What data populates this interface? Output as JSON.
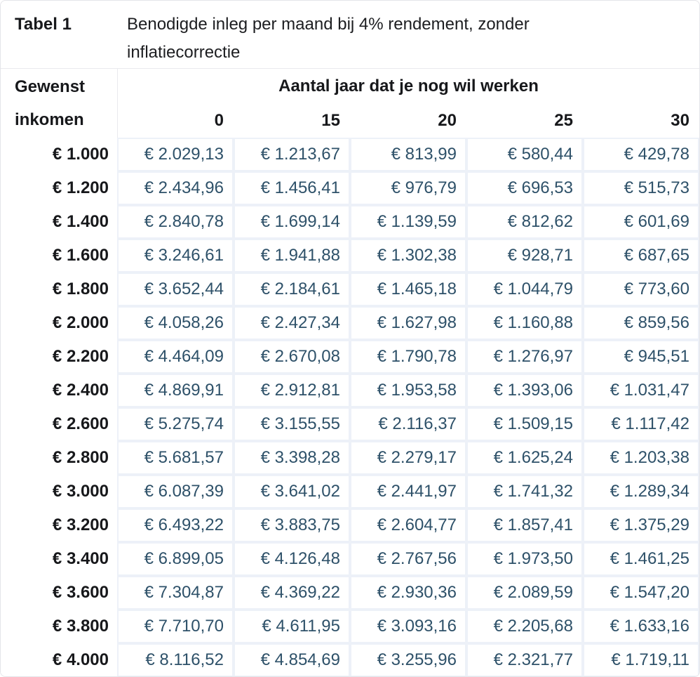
{
  "colors": {
    "value_text": "#2e5169",
    "grid_border": "#edf1f8",
    "divider": "#e9eaee",
    "header_text": "#17181b",
    "background": "#ffffff"
  },
  "table": {
    "label": "Tabel 1",
    "caption": "Benodigde inleg per maand bij 4% rendement, zonder inflatiecorrectie",
    "row_header_line1": "Gewenst",
    "row_header_line2": "inkomen",
    "col_group_header": "Aantal jaar dat je nog wil werken",
    "col_headers": [
      "0",
      "15",
      "20",
      "25",
      "30"
    ],
    "rows": [
      {
        "income": "€ 1.000",
        "values": [
          "€ 2.029,13",
          "€ 1.213,67",
          "€ 813,99",
          "€ 580,44",
          "€ 429,78"
        ]
      },
      {
        "income": "€ 1.200",
        "values": [
          "€ 2.434,96",
          "€ 1.456,41",
          "€ 976,79",
          "€ 696,53",
          "€ 515,73"
        ]
      },
      {
        "income": "€ 1.400",
        "values": [
          "€ 2.840,78",
          "€ 1.699,14",
          "€ 1.139,59",
          "€ 812,62",
          "€ 601,69"
        ]
      },
      {
        "income": "€ 1.600",
        "values": [
          "€ 3.246,61",
          "€ 1.941,88",
          "€ 1.302,38",
          "€ 928,71",
          "€ 687,65"
        ]
      },
      {
        "income": "€ 1.800",
        "values": [
          "€ 3.652,44",
          "€ 2.184,61",
          "€ 1.465,18",
          "€ 1.044,79",
          "€ 773,60"
        ]
      },
      {
        "income": "€ 2.000",
        "values": [
          "€ 4.058,26",
          "€ 2.427,34",
          "€ 1.627,98",
          "€ 1.160,88",
          "€ 859,56"
        ]
      },
      {
        "income": "€ 2.200",
        "values": [
          "€ 4.464,09",
          "€ 2.670,08",
          "€ 1.790,78",
          "€ 1.276,97",
          "€ 945,51"
        ]
      },
      {
        "income": "€ 2.400",
        "values": [
          "€ 4.869,91",
          "€ 2.912,81",
          "€ 1.953,58",
          "€ 1.393,06",
          "€ 1.031,47"
        ]
      },
      {
        "income": "€ 2.600",
        "values": [
          "€ 5.275,74",
          "€ 3.155,55",
          "€ 2.116,37",
          "€ 1.509,15",
          "€ 1.117,42"
        ]
      },
      {
        "income": "€ 2.800",
        "values": [
          "€ 5.681,57",
          "€ 3.398,28",
          "€ 2.279,17",
          "€ 1.625,24",
          "€ 1.203,38"
        ]
      },
      {
        "income": "€ 3.000",
        "values": [
          "€ 6.087,39",
          "€ 3.641,02",
          "€ 2.441,97",
          "€ 1.741,32",
          "€ 1.289,34"
        ]
      },
      {
        "income": "€ 3.200",
        "values": [
          "€ 6.493,22",
          "€ 3.883,75",
          "€ 2.604,77",
          "€ 1.857,41",
          "€ 1.375,29"
        ]
      },
      {
        "income": "€ 3.400",
        "values": [
          "€ 6.899,05",
          "€ 4.126,48",
          "€ 2.767,56",
          "€ 1.973,50",
          "€ 1.461,25"
        ]
      },
      {
        "income": "€ 3.600",
        "values": [
          "€ 7.304,87",
          "€ 4.369,22",
          "€ 2.930,36",
          "€ 2.089,59",
          "€ 1.547,20"
        ]
      },
      {
        "income": "€ 3.800",
        "values": [
          "€ 7.710,70",
          "€ 4.611,95",
          "€ 3.093,16",
          "€ 2.205,68",
          "€ 1.633,16"
        ]
      },
      {
        "income": "€ 4.000",
        "values": [
          "€ 8.116,52",
          "€ 4.854,69",
          "€ 3.255,96",
          "€ 2.321,77",
          "€ 1.719,11"
        ]
      }
    ]
  },
  "chart_data": {
    "type": "table",
    "title": "Benodigde inleg per maand bij 4% rendement, zonder inflatiecorrectie",
    "row_axis_label": "Gewenst inkomen",
    "col_axis_label": "Aantal jaar dat je nog wil werken",
    "columns": [
      0,
      15,
      20,
      25,
      30
    ],
    "rows": [
      {
        "income": 1000,
        "values": [
          2029.13,
          1213.67,
          813.99,
          580.44,
          429.78
        ]
      },
      {
        "income": 1200,
        "values": [
          2434.96,
          1456.41,
          976.79,
          696.53,
          515.73
        ]
      },
      {
        "income": 1400,
        "values": [
          2840.78,
          1699.14,
          1139.59,
          812.62,
          601.69
        ]
      },
      {
        "income": 1600,
        "values": [
          3246.61,
          1941.88,
          1302.38,
          928.71,
          687.65
        ]
      },
      {
        "income": 1800,
        "values": [
          3652.44,
          2184.61,
          1465.18,
          1044.79,
          773.6
        ]
      },
      {
        "income": 2000,
        "values": [
          4058.26,
          2427.34,
          1627.98,
          1160.88,
          859.56
        ]
      },
      {
        "income": 2200,
        "values": [
          4464.09,
          2670.08,
          1790.78,
          1276.97,
          945.51
        ]
      },
      {
        "income": 2400,
        "values": [
          4869.91,
          2912.81,
          1953.58,
          1393.06,
          1031.47
        ]
      },
      {
        "income": 2600,
        "values": [
          5275.74,
          3155.55,
          2116.37,
          1509.15,
          1117.42
        ]
      },
      {
        "income": 2800,
        "values": [
          5681.57,
          3398.28,
          2279.17,
          1625.24,
          1203.38
        ]
      },
      {
        "income": 3000,
        "values": [
          6087.39,
          3641.02,
          2441.97,
          1741.32,
          1289.34
        ]
      },
      {
        "income": 3200,
        "values": [
          6493.22,
          3883.75,
          2604.77,
          1857.41,
          1375.29
        ]
      },
      {
        "income": 3400,
        "values": [
          6899.05,
          4126.48,
          2767.56,
          1973.5,
          1461.25
        ]
      },
      {
        "income": 3600,
        "values": [
          7304.87,
          4369.22,
          2930.36,
          2089.59,
          1547.2
        ]
      },
      {
        "income": 3800,
        "values": [
          7710.7,
          4611.95,
          3093.16,
          2205.68,
          1633.16
        ]
      },
      {
        "income": 4000,
        "values": [
          8116.52,
          4854.69,
          3255.96,
          2321.77,
          1719.11
        ]
      }
    ],
    "currency": "EUR",
    "number_format": "nl-NL"
  }
}
